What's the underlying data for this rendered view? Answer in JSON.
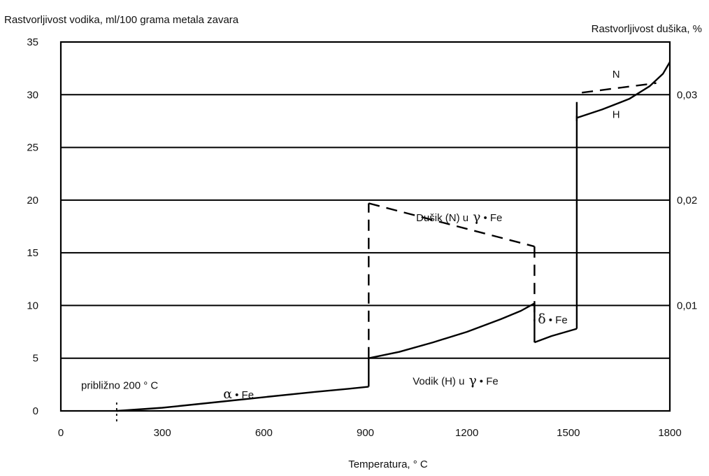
{
  "chart_data": {
    "type": "line",
    "title": "",
    "ylabel": "Rastvorljivost vodika, ml/100 grama metala zavara",
    "y2label": "Rastvorljivost dušika, %",
    "xlabel": "Temperatura, ° C",
    "xlim": [
      0,
      1800
    ],
    "ylim": [
      0,
      35
    ],
    "y2lim": [
      0,
      0.035
    ],
    "grid": "horizontal",
    "x_ticks": [
      "0",
      "300",
      "600",
      "900",
      "1200",
      "1500",
      "1800"
    ],
    "y_ticks": [
      "0",
      "5",
      "10",
      "15",
      "20",
      "25",
      "30",
      "35"
    ],
    "y2_ticks": [
      "0,01",
      "0,02",
      "0,03"
    ],
    "series": [
      {
        "name": "Vodik (H)",
        "axis": "left",
        "style": "solid",
        "segments": [
          {
            "x": [
              165,
              300,
              450,
              600,
              750,
              850,
              910
            ],
            "y": [
              0,
              0.3,
              0.8,
              1.3,
              1.8,
              2.1,
              2.3
            ]
          },
          {
            "x": [
              910,
              910
            ],
            "y": [
              2.3,
              5
            ]
          },
          {
            "x": [
              910,
              1000,
              1100,
              1200,
              1300,
              1360,
              1400
            ],
            "y": [
              5,
              5.6,
              6.5,
              7.5,
              8.7,
              9.5,
              10.2
            ]
          },
          {
            "x": [
              1400,
              1400
            ],
            "y": [
              10.2,
              6.5
            ]
          },
          {
            "x": [
              1400,
              1450,
              1525
            ],
            "y": [
              6.5,
              7.1,
              7.8
            ]
          },
          {
            "x": [
              1525,
              1525
            ],
            "y": [
              7.8,
              29.3
            ]
          },
          {
            "x": [
              1525,
              1525
            ],
            "y": [
              27.5,
              28
            ]
          },
          {
            "x": [
              1525,
              1600,
              1680,
              1740,
              1780,
              1800
            ],
            "y": [
              27.8,
              28.6,
              29.6,
              30.8,
              32,
              33.1
            ]
          }
        ]
      },
      {
        "name": "Dušik (N)",
        "axis": "right",
        "style": "dashed",
        "segments": [
          {
            "x": [
              910,
              910
            ],
            "y": [
              0.005,
              0.0197
            ]
          },
          {
            "x": [
              910,
              1400
            ],
            "y": [
              0.0197,
              0.0156
            ]
          },
          {
            "x": [
              1400,
              1400
            ],
            "y": [
              0.0156,
              0.0085
            ]
          },
          {
            "x": [
              1540,
              1760
            ],
            "y": [
              0.0302,
              0.0311
            ]
          }
        ]
      }
    ],
    "annotations": [
      {
        "text": "približno 200 ° C",
        "x": 60,
        "y": 2.1
      },
      {
        "text": "Dušik (N) u",
        "greek": "γ",
        "suffix": "• Fe",
        "x": 1050,
        "y": 18
      },
      {
        "text": "Vodik (H) u",
        "greek": "γ",
        "suffix": "• Fe",
        "x": 1040,
        "y": 2.5
      },
      {
        "text": "",
        "greek": "α",
        "suffix": "• Fe",
        "x": 480,
        "y": 1.2
      },
      {
        "text": "",
        "greek": "δ",
        "suffix": "• Fe",
        "x": 1410,
        "y": 8.3
      },
      {
        "text": "N",
        "x": 1630,
        "y": 31.6
      },
      {
        "text": "H",
        "x": 1630,
        "y": 27.8
      }
    ],
    "marker_line": {
      "x": 165,
      "style": "dotted"
    }
  }
}
